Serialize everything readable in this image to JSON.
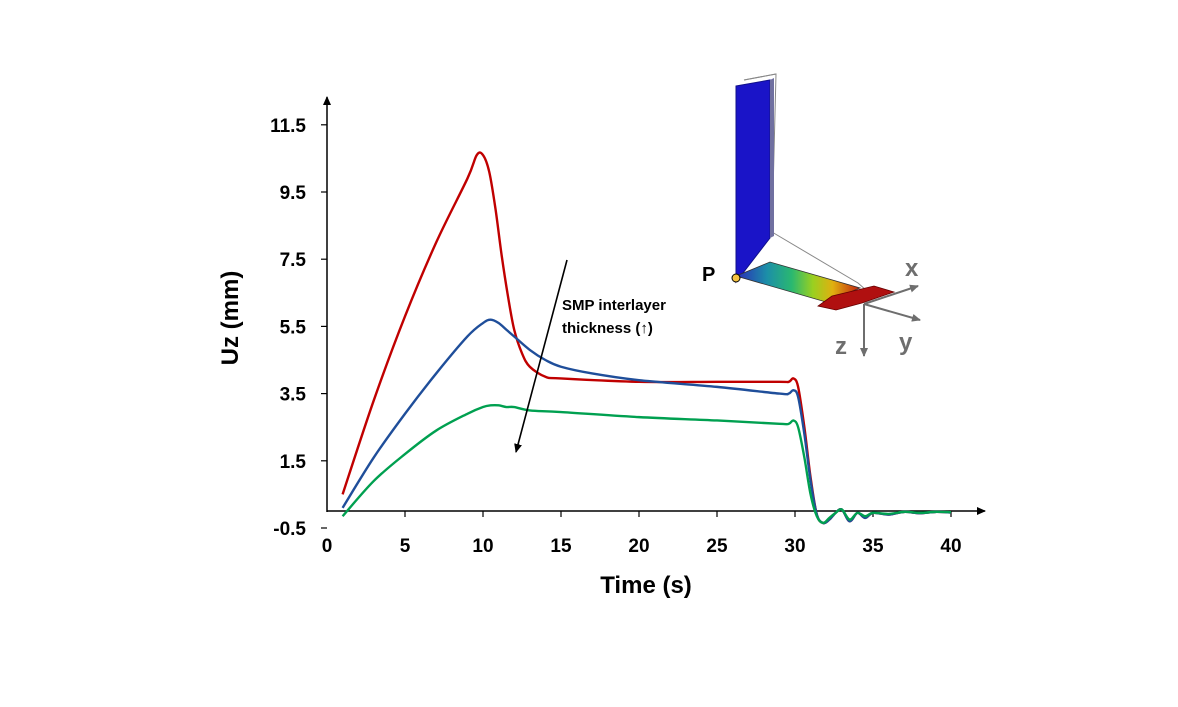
{
  "chart_data": {
    "type": "line",
    "title": "",
    "xlabel": "Time (s)",
    "ylabel": "Uz (mm)",
    "xlim": [
      0,
      40
    ],
    "ylim": [
      -0.5,
      12.0
    ],
    "x_ticks": [
      "0",
      "5",
      "10",
      "15",
      "20",
      "25",
      "30",
      "35",
      "40"
    ],
    "y_ticks": [
      "-0.5",
      "1.5",
      "3.5",
      "5.5",
      "7.5",
      "9.5",
      "11.5"
    ],
    "x_tick_values": [
      0,
      5,
      10,
      15,
      20,
      25,
      30,
      35,
      40
    ],
    "y_tick_values": [
      -0.5,
      1.5,
      3.5,
      5.5,
      7.5,
      9.5,
      11.5
    ],
    "grid": false,
    "legend": "none",
    "series": [
      {
        "color": "#c00000",
        "x": [
          1,
          3,
          5,
          7,
          9,
          9.6,
          10,
          10.4,
          10.8,
          11.2,
          11.6,
          12,
          12.5,
          13,
          14,
          15,
          20,
          25,
          29,
          29.6,
          29.9,
          30.2,
          30.6,
          31.0,
          31.4,
          31.8,
          32.2,
          32.6,
          33.0,
          33.5,
          34.0,
          34.5,
          35.0,
          36.0,
          37.0,
          38.0,
          39.0,
          40.0
        ],
        "y": [
          0.5,
          3.3,
          5.8,
          8.0,
          9.9,
          10.6,
          10.6,
          10.1,
          9.0,
          7.6,
          6.4,
          5.4,
          4.7,
          4.3,
          4.0,
          3.95,
          3.85,
          3.85,
          3.85,
          3.85,
          3.95,
          3.7,
          2.5,
          1.0,
          -0.1,
          -0.35,
          -0.25,
          -0.05,
          0.05,
          -0.3,
          -0.05,
          -0.2,
          -0.05,
          -0.1,
          -0.02,
          -0.06,
          -0.02,
          -0.04
        ]
      },
      {
        "color": "#1f4e9a",
        "x": [
          1,
          3,
          5,
          7,
          9,
          10,
          10.5,
          11,
          11.5,
          12,
          13,
          14,
          15,
          17,
          20,
          25,
          29,
          29.6,
          29.9,
          30.2,
          30.6,
          31.0,
          31.4,
          31.8,
          32.2,
          32.6,
          33.0,
          33.5,
          34.0,
          34.5,
          35.0,
          36.0,
          37.0,
          38.0,
          39.0,
          40.0
        ],
        "y": [
          0.1,
          1.6,
          2.9,
          4.1,
          5.2,
          5.6,
          5.7,
          5.6,
          5.4,
          5.2,
          4.8,
          4.5,
          4.3,
          4.1,
          3.9,
          3.7,
          3.5,
          3.5,
          3.6,
          3.4,
          2.3,
          0.9,
          -0.1,
          -0.35,
          -0.25,
          -0.05,
          0.05,
          -0.3,
          -0.05,
          -0.2,
          -0.05,
          -0.1,
          -0.02,
          -0.06,
          -0.02,
          -0.04
        ]
      },
      {
        "color": "#00a050",
        "x": [
          1,
          3,
          5,
          7,
          9,
          10,
          10.5,
          11,
          11.5,
          12,
          13,
          15,
          20,
          25,
          29,
          29.6,
          29.9,
          30.2,
          30.6,
          31.0,
          31.4,
          31.8,
          32.2,
          32.6,
          33.0,
          33.5,
          34.0,
          34.5,
          35.0,
          36.0,
          37.0,
          38.0,
          39.0,
          40.0
        ],
        "y": [
          -0.15,
          0.9,
          1.7,
          2.4,
          2.9,
          3.1,
          3.15,
          3.15,
          3.1,
          3.1,
          3.0,
          2.95,
          2.8,
          2.7,
          2.6,
          2.6,
          2.7,
          2.5,
          1.6,
          0.5,
          -0.15,
          -0.35,
          -0.2,
          -0.05,
          0.05,
          -0.25,
          -0.05,
          -0.15,
          -0.05,
          -0.08,
          -0.02,
          -0.05,
          -0.02,
          -0.03
        ]
      }
    ],
    "annotations": [
      {
        "text_lines": [
          "SMP interlayer",
          "thickness (↑)"
        ]
      }
    ]
  },
  "inset": {
    "point_label": "P",
    "axis_x_label": "x",
    "axis_y_label": "y",
    "axis_z_label": "z"
  }
}
